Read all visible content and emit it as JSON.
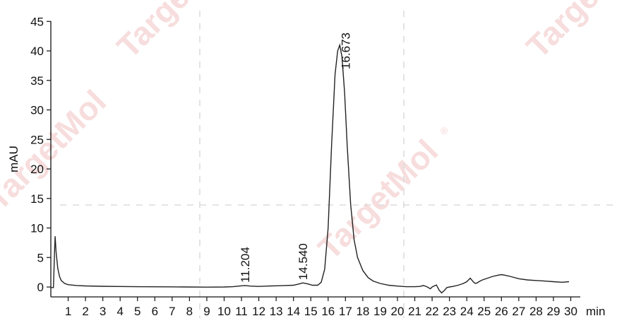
{
  "chart_data": {
    "type": "line",
    "title": "",
    "xlabel": "min",
    "ylabel": "mAU",
    "xlim": [
      0,
      30
    ],
    "ylim": [
      -2,
      45
    ],
    "x_ticks": [
      1,
      2,
      3,
      4,
      5,
      6,
      7,
      8,
      9,
      10,
      11,
      12,
      13,
      14,
      15,
      16,
      17,
      18,
      19,
      20,
      21,
      22,
      23,
      24,
      25,
      26,
      27,
      28,
      29,
      30
    ],
    "y_ticks": [
      0,
      5,
      10,
      15,
      20,
      25,
      30,
      35,
      40,
      45
    ],
    "grid": false,
    "series": [
      {
        "color": "#222222",
        "x": [
          0.0,
          0.15,
          0.22,
          0.25,
          0.3,
          0.4,
          0.5,
          0.6,
          0.8,
          1.0,
          1.5,
          2.0,
          3.0,
          4.0,
          5.0,
          6.0,
          7.0,
          8.0,
          9.0,
          10.0,
          10.5,
          11.0,
          11.2,
          11.5,
          12.0,
          12.5,
          13.0,
          13.5,
          14.0,
          14.3,
          14.54,
          14.8,
          15.1,
          15.4,
          15.6,
          15.8,
          16.0,
          16.2,
          16.4,
          16.55,
          16.673,
          16.8,
          16.95,
          17.1,
          17.3,
          17.5,
          17.7,
          18.0,
          18.3,
          18.6,
          19.0,
          19.5,
          20.0,
          20.5,
          21.0,
          21.3,
          21.5,
          21.7,
          21.9,
          22.0,
          22.1,
          22.25,
          22.4,
          22.55,
          22.7,
          22.85,
          23.0,
          23.2,
          23.5,
          23.8,
          24.0,
          24.2,
          24.4,
          24.5,
          24.6,
          24.7,
          24.9,
          25.2,
          25.5,
          25.8,
          26.0,
          26.2,
          26.5,
          27.0,
          27.5,
          28.0,
          28.5,
          29.0,
          29.5,
          29.9
        ],
        "y": [
          -0.1,
          -0.1,
          6.5,
          8.6,
          6.0,
          3.2,
          1.8,
          1.1,
          0.6,
          0.4,
          0.25,
          0.18,
          0.12,
          0.08,
          0.05,
          0.03,
          0.02,
          0.0,
          -0.02,
          0.0,
          0.05,
          0.2,
          0.25,
          0.15,
          0.1,
          0.15,
          0.2,
          0.25,
          0.3,
          0.5,
          0.7,
          0.55,
          0.3,
          0.3,
          0.8,
          3.0,
          10.0,
          24.0,
          36.0,
          40.0,
          41.0,
          39.0,
          33.0,
          24.0,
          14.0,
          8.0,
          5.0,
          2.8,
          1.6,
          1.0,
          0.6,
          0.3,
          0.15,
          0.05,
          0.05,
          0.1,
          0.25,
          0.05,
          -0.3,
          0.0,
          0.15,
          0.35,
          -0.5,
          -1.0,
          -0.6,
          -0.1,
          0.0,
          0.1,
          0.3,
          0.6,
          0.9,
          1.5,
          0.8,
          0.6,
          0.7,
          0.9,
          1.2,
          1.5,
          1.8,
          2.0,
          2.1,
          2.0,
          1.8,
          1.4,
          1.2,
          1.1,
          1.0,
          0.9,
          0.8,
          0.9
        ]
      }
    ],
    "annotations": [
      {
        "text": "11.204",
        "x": 11.204,
        "y": 0.25
      },
      {
        "text": "14.540",
        "x": 14.54,
        "y": 0.7
      },
      {
        "text": "16.673",
        "x": 16.673,
        "y": 41.0
      }
    ]
  },
  "watermark": "TargetMol",
  "watermark_symbol": "®"
}
